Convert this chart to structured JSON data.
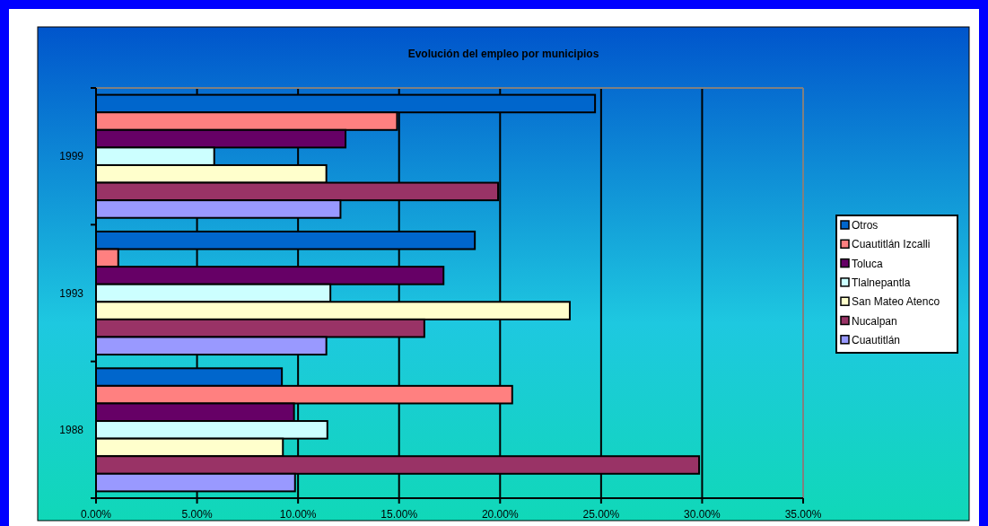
{
  "chart_data": {
    "type": "bar",
    "orientation": "horizontal",
    "title": "Evolución del empleo por municipios",
    "categories": [
      "1999",
      "1993",
      "1988"
    ],
    "series": [
      {
        "name": "Otros",
        "color": "#0066cc",
        "values": [
          24.7,
          18.75,
          9.2
        ]
      },
      {
        "name": "Cuautitlán Izcalli",
        "color": "#ff8080",
        "values": [
          14.9,
          1.1,
          20.6
        ]
      },
      {
        "name": "Toluca",
        "color": "#660066",
        "values": [
          12.35,
          17.2,
          9.8
        ]
      },
      {
        "name": "Tlalnepantla",
        "color": "#ccffff",
        "values": [
          5.85,
          11.6,
          11.45
        ]
      },
      {
        "name": "San Mateo Atenco",
        "color": "#ffffcc",
        "values": [
          11.4,
          23.45,
          9.25
        ]
      },
      {
        "name": "Nucalpan",
        "color": "#993366",
        "values": [
          19.9,
          16.25,
          29.85
        ]
      },
      {
        "name": "Cuautitlán",
        "color": "#9999ff",
        "values": [
          12.1,
          11.4,
          9.85
        ]
      }
    ],
    "xlim": [
      0,
      35
    ],
    "xticks": [
      {
        "value": 0,
        "label": "0.00%"
      },
      {
        "value": 5,
        "label": "5.00%"
      },
      {
        "value": 10,
        "label": "10.00%"
      },
      {
        "value": 15,
        "label": "15.00%"
      },
      {
        "value": 20,
        "label": "20.00%"
      },
      {
        "value": 25,
        "label": "25.00%"
      },
      {
        "value": 30,
        "label": "30.00%"
      },
      {
        "value": 35,
        "label": "35.00%"
      }
    ],
    "grid": "x",
    "legend": "right"
  }
}
